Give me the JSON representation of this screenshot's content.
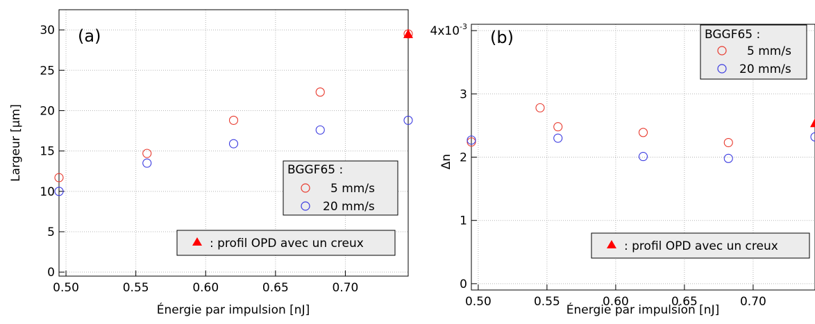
{
  "chart_data": [
    {
      "type": "scatter",
      "panel_label": "(a)",
      "xlabel": "Énergie par impulsion [nJ]",
      "ylabel": "Largeur [µm]",
      "xlim": [
        0.495,
        0.745
      ],
      "ylim": [
        -0.5,
        32.5
      ],
      "xticks": [
        0.5,
        0.55,
        0.6,
        0.65,
        0.7
      ],
      "xtick_labels": [
        "0.50",
        "0.55",
        "0.60",
        "0.65",
        "0.70"
      ],
      "yticks": [
        0,
        5,
        10,
        15,
        20,
        25,
        30
      ],
      "ytick_labels": [
        "0",
        "5",
        "10",
        "15",
        "20",
        "25",
        "30"
      ],
      "grid": true,
      "series": [
        {
          "name": "5 mm/s",
          "color": "#e8382c",
          "marker": "open-circle",
          "x": [
            0.495,
            0.558,
            0.62,
            0.682,
            0.745
          ],
          "y": [
            11.7,
            14.7,
            18.8,
            22.3,
            29.5
          ]
        },
        {
          "name": "20 mm/s",
          "color": "#3a3ae0",
          "marker": "open-circle",
          "x": [
            0.495,
            0.558,
            0.62,
            0.682,
            0.745
          ],
          "y": [
            10.0,
            13.5,
            15.9,
            17.6,
            18.8
          ]
        },
        {
          "name": "profil OPD avec un creux",
          "color": "#ff0000",
          "marker": "filled-triangle",
          "x": [
            0.745
          ],
          "y": [
            29.5
          ]
        }
      ],
      "legend": {
        "title": "BGGF65 :",
        "entries": [
          "5 mm/s",
          "20 mm/s"
        ],
        "placement": "center-right"
      },
      "note": ": profil OPD avec un creux"
    },
    {
      "type": "scatter",
      "panel_label": "(b)",
      "xlabel": "Énergie par impulsion [nJ]",
      "ylabel": "Δn",
      "xlim": [
        0.495,
        0.745
      ],
      "ylim": [
        -0.0001,
        0.0041
      ],
      "xticks": [
        0.5,
        0.55,
        0.6,
        0.65,
        0.7
      ],
      "xtick_labels": [
        "0.50",
        "0.55",
        "0.60",
        "0.65",
        "0.70"
      ],
      "yticks": [
        0,
        0.001,
        0.002,
        0.003,
        0.004
      ],
      "ytick_labels": [
        "0",
        "1",
        "2",
        "3",
        "4x10"
      ],
      "ytick_exponent": "-3",
      "grid": true,
      "series": [
        {
          "name": "5 mm/s",
          "color": "#e8382c",
          "marker": "open-circle",
          "x": [
            0.495,
            0.545,
            0.558,
            0.62,
            0.682
          ],
          "y": [
            0.00224,
            0.00278,
            0.00248,
            0.00239,
            0.00223
          ]
        },
        {
          "name": "20 mm/s",
          "color": "#3a3ae0",
          "marker": "open-circle",
          "x": [
            0.495,
            0.558,
            0.62,
            0.682,
            0.745
          ],
          "y": [
            0.00227,
            0.0023,
            0.00201,
            0.00198,
            0.00232
          ]
        },
        {
          "name": "profil OPD avec un creux",
          "color": "#ff0000",
          "marker": "filled-triangle",
          "x": [
            0.745
          ],
          "y": [
            0.00254
          ]
        }
      ],
      "legend": {
        "title": "BGGF65 :",
        "entries": [
          "5 mm/s",
          "20 mm/s"
        ],
        "placement": "top-right"
      },
      "note": ": profil OPD avec un creux"
    }
  ]
}
